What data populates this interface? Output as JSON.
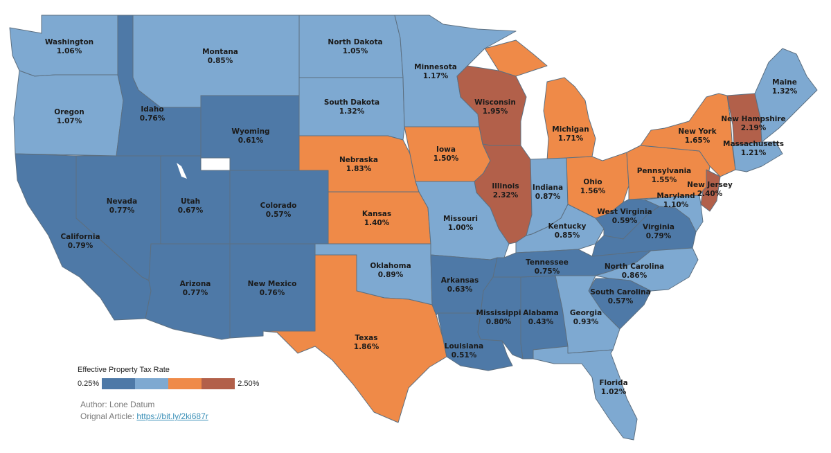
{
  "colors": {
    "dark_blue": "#4e79a7",
    "light_blue": "#7ea9d1",
    "orange": "#ef8a48",
    "dark_red": "#b2604a",
    "border": "#5c6f80"
  },
  "states": [
    {
      "name": "Washington",
      "rate": "1.06%",
      "cls": "light_blue"
    },
    {
      "name": "Montana",
      "rate": "0.85%",
      "cls": "light_blue"
    },
    {
      "name": "North Dakota",
      "rate": "1.05%",
      "cls": "light_blue"
    },
    {
      "name": "Minnesota",
      "rate": "1.17%",
      "cls": "light_blue"
    },
    {
      "name": "Oregon",
      "rate": "1.07%",
      "cls": "light_blue"
    },
    {
      "name": "Idaho",
      "rate": "0.76%",
      "cls": "dark_blue"
    },
    {
      "name": "Wyoming",
      "rate": "0.61%",
      "cls": "dark_blue"
    },
    {
      "name": "South Dakota",
      "rate": "1.32%",
      "cls": "light_blue"
    },
    {
      "name": "Wisconsin",
      "rate": "1.95%",
      "cls": "dark_red"
    },
    {
      "name": "Michigan",
      "rate": "1.71%",
      "cls": "orange"
    },
    {
      "name": "Maine",
      "rate": "1.32%",
      "cls": "light_blue"
    },
    {
      "name": "New Hampshire",
      "rate": "2.19%",
      "cls": "dark_red"
    },
    {
      "name": "New York",
      "rate": "1.65%",
      "cls": "orange"
    },
    {
      "name": "Massachusetts",
      "rate": "1.21%",
      "cls": "light_blue"
    },
    {
      "name": "Nebraska",
      "rate": "1.83%",
      "cls": "orange"
    },
    {
      "name": "Iowa",
      "rate": "1.50%",
      "cls": "orange"
    },
    {
      "name": "Nevada",
      "rate": "0.77%",
      "cls": "dark_blue"
    },
    {
      "name": "Utah",
      "rate": "0.67%",
      "cls": "dark_blue"
    },
    {
      "name": "Colorado",
      "rate": "0.57%",
      "cls": "dark_blue"
    },
    {
      "name": "Illinois",
      "rate": "2.32%",
      "cls": "dark_red"
    },
    {
      "name": "Indiana",
      "rate": "0.87%",
      "cls": "light_blue"
    },
    {
      "name": "Ohio",
      "rate": "1.56%",
      "cls": "orange"
    },
    {
      "name": "Pennsylvania",
      "rate": "1.55%",
      "cls": "orange"
    },
    {
      "name": "New Jersey",
      "rate": "2.40%",
      "cls": "dark_red"
    },
    {
      "name": "Maryland",
      "rate": "1.10%",
      "cls": "light_blue"
    },
    {
      "name": "California",
      "rate": "0.79%",
      "cls": "dark_blue"
    },
    {
      "name": "Kansas",
      "rate": "1.40%",
      "cls": "orange"
    },
    {
      "name": "Missouri",
      "rate": "1.00%",
      "cls": "light_blue"
    },
    {
      "name": "West Virginia",
      "rate": "0.59%",
      "cls": "dark_blue"
    },
    {
      "name": "Kentucky",
      "rate": "0.85%",
      "cls": "light_blue"
    },
    {
      "name": "Virginia",
      "rate": "0.79%",
      "cls": "dark_blue"
    },
    {
      "name": "Tennessee",
      "rate": "0.75%",
      "cls": "dark_blue"
    },
    {
      "name": "Oklahoma",
      "rate": "0.89%",
      "cls": "light_blue"
    },
    {
      "name": "North Carolina",
      "rate": "0.86%",
      "cls": "light_blue"
    },
    {
      "name": "Arizona",
      "rate": "0.77%",
      "cls": "dark_blue"
    },
    {
      "name": "New Mexico",
      "rate": "0.76%",
      "cls": "dark_blue"
    },
    {
      "name": "Arkansas",
      "rate": "0.63%",
      "cls": "dark_blue"
    },
    {
      "name": "South Carolina",
      "rate": "0.57%",
      "cls": "dark_blue"
    },
    {
      "name": "Mississippi",
      "rate": "0.80%",
      "cls": "dark_blue"
    },
    {
      "name": "Alabama",
      "rate": "0.43%",
      "cls": "dark_blue"
    },
    {
      "name": "Georgia",
      "rate": "0.93%",
      "cls": "light_blue"
    },
    {
      "name": "Texas",
      "rate": "1.86%",
      "cls": "orange"
    },
    {
      "name": "Louisiana",
      "rate": "0.51%",
      "cls": "dark_blue"
    },
    {
      "name": "Florida",
      "rate": "1.02%",
      "cls": "light_blue"
    }
  ],
  "legend": {
    "title": "Effective Property Tax Rate",
    "min": "0.25%",
    "max": "2.50%",
    "swatches": [
      "#4e79a7",
      "#7ea9d1",
      "#ef8a48",
      "#b2604a"
    ]
  },
  "credits": {
    "author": "Author: Lone Datum",
    "article_prefix": "Orignal Article:",
    "article_link": "https://bit.ly/2ki687r"
  }
}
